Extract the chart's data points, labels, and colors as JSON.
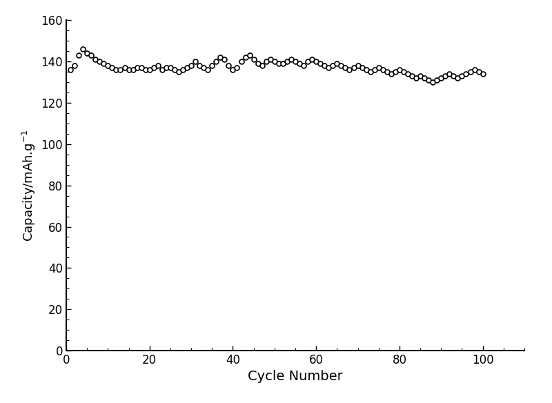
{
  "xlabel": "Cycle Number",
  "ylabel": "Capacity/mAh.g$^{-1}$",
  "xlim": [
    0,
    110
  ],
  "ylim": [
    0,
    160
  ],
  "xticks": [
    0,
    20,
    40,
    60,
    80,
    100
  ],
  "yticks": [
    0,
    20,
    40,
    60,
    80,
    100,
    120,
    140,
    160
  ],
  "marker": "o",
  "marker_size": 5,
  "marker_facecolor": "white",
  "marker_edgecolor": "black",
  "background_color": "white",
  "xlabel_fontsize": 14,
  "ylabel_fontsize": 13,
  "tick_fontsize": 12,
  "cycle_data": [
    1,
    2,
    3,
    4,
    5,
    6,
    7,
    8,
    9,
    10,
    11,
    12,
    13,
    14,
    15,
    16,
    17,
    18,
    19,
    20,
    21,
    22,
    23,
    24,
    25,
    26,
    27,
    28,
    29,
    30,
    31,
    32,
    33,
    34,
    35,
    36,
    37,
    38,
    39,
    40,
    41,
    42,
    43,
    44,
    45,
    46,
    47,
    48,
    49,
    50,
    51,
    52,
    53,
    54,
    55,
    56,
    57,
    58,
    59,
    60,
    61,
    62,
    63,
    64,
    65,
    66,
    67,
    68,
    69,
    70,
    71,
    72,
    73,
    74,
    75,
    76,
    77,
    78,
    79,
    80,
    81,
    82,
    83,
    84,
    85,
    86,
    87,
    88,
    89,
    90,
    91,
    92,
    93,
    94,
    95,
    96,
    97,
    98,
    99,
    100
  ],
  "capacity_data": [
    136,
    138,
    143,
    146,
    144,
    143,
    141,
    140,
    139,
    138,
    137,
    136,
    136,
    137,
    136,
    136,
    137,
    137,
    136,
    136,
    137,
    138,
    136,
    137,
    137,
    136,
    135,
    136,
    137,
    138,
    140,
    138,
    137,
    136,
    138,
    140,
    142,
    141,
    138,
    136,
    137,
    140,
    142,
    143,
    141,
    139,
    138,
    140,
    141,
    140,
    139,
    139,
    140,
    141,
    140,
    139,
    138,
    140,
    141,
    140,
    139,
    138,
    137,
    138,
    139,
    138,
    137,
    136,
    137,
    138,
    137,
    136,
    135,
    136,
    137,
    136,
    135,
    134,
    135,
    136,
    135,
    134,
    133,
    132,
    133,
    132,
    131,
    130,
    131,
    132,
    133,
    134,
    133,
    132,
    133,
    134,
    135,
    136,
    135,
    134
  ]
}
